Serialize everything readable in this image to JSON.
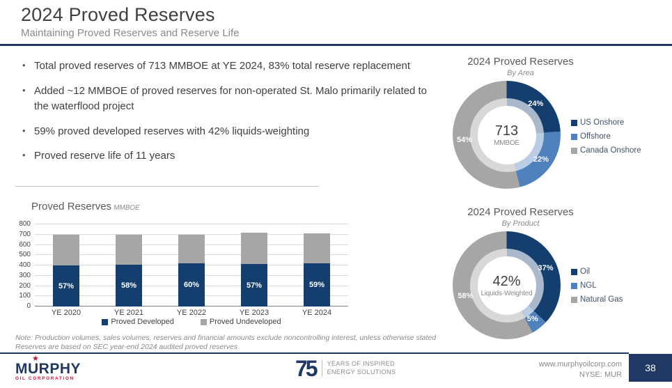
{
  "slide": {
    "title": "2024 Proved Reserves",
    "subtitle": "Maintaining Proved Reserves and Reserve Life",
    "page_number": "38"
  },
  "bullets": [
    "Total proved reserves of 713 MMBOE at YE 2024, 83% total reserve replacement",
    "Added ~12 MMBOE of proved reserves for non-operated St. Malo primarily related to the waterflood project",
    "59% proved developed reserves with 42% liquids-weighting",
    "Proved reserve life of 11 years"
  ],
  "chart_data": [
    {
      "type": "bar",
      "title": "Proved Reserves",
      "unit_label": "MMBOE",
      "categories": [
        "YE 2020",
        "YE 2021",
        "YE 2022",
        "YE 2023",
        "YE 2024"
      ],
      "series": [
        {
          "name": "Proved Developed",
          "color": "#133E6D",
          "values": [
            397,
            405,
            418,
            411,
            421
          ]
        },
        {
          "name": "Proved Undeveloped",
          "color": "#A6A6A6",
          "values": [
            300,
            294,
            279,
            310,
            292
          ]
        }
      ],
      "bar_labels": [
        "57%",
        "58%",
        "60%",
        "57%",
        "59%"
      ],
      "ylim": [
        0,
        800
      ],
      "ytick_step": 100,
      "grid": true,
      "legend_position": "bottom"
    },
    {
      "type": "donut",
      "title": "2024 Proved Reserves",
      "subtitle": "By Area",
      "center_value": "713",
      "center_label": "MMBOE",
      "slices": [
        {
          "label": "US Onshore",
          "value": 24,
          "display": "24%",
          "color": "#133E6D",
          "inner_color": "#A9B8CB"
        },
        {
          "label": "Offshore",
          "value": 22,
          "display": "22%",
          "color": "#4F81BD",
          "inner_color": "#B9CDE5"
        },
        {
          "label": "Canada Onshore",
          "value": 54,
          "display": "54%",
          "color": "#A6A6A6",
          "inner_color": "#D8D8D8"
        }
      ],
      "legend_position": "right"
    },
    {
      "type": "donut",
      "title": "2024 Proved Reserves",
      "subtitle": "By Product",
      "center_value": "42%",
      "center_label": "Liquids-Weighted",
      "slices": [
        {
          "label": "Oil",
          "value": 37,
          "display": "37%",
          "color": "#133E6D",
          "inner_color": "#A9B8CB"
        },
        {
          "label": "NGL",
          "value": 5,
          "display": "5%",
          "color": "#4F81BD",
          "inner_color": "#B9CDE5"
        },
        {
          "label": "Natural Gas",
          "value": 58,
          "display": "58%",
          "color": "#A6A6A6",
          "inner_color": "#D8D8D8"
        }
      ],
      "legend_position": "right"
    }
  ],
  "note_lines": [
    "Note: Production volumes, sales volumes, reserves and financial amounts exclude noncontrolling interest, unless otherwise stated",
    "Reserves are based on SEC year-end 2024 audited proved reserves"
  ],
  "footer": {
    "company": "MURPHY",
    "company_sub": "OIL CORPORATION",
    "anniversary_number": "75",
    "anniversary_line1": "YEARS OF INSPIRED",
    "anniversary_line2": "ENERGY SOLUTIONS",
    "website": "www.murphyoilcorp.com",
    "ticker": "NYSE: MUR"
  },
  "colors": {
    "navy": "#133E6D",
    "accent_rule": "#1F3864",
    "mid_blue": "#4F81BD",
    "gray": "#A6A6A6",
    "logo_red": "#C8102E"
  }
}
